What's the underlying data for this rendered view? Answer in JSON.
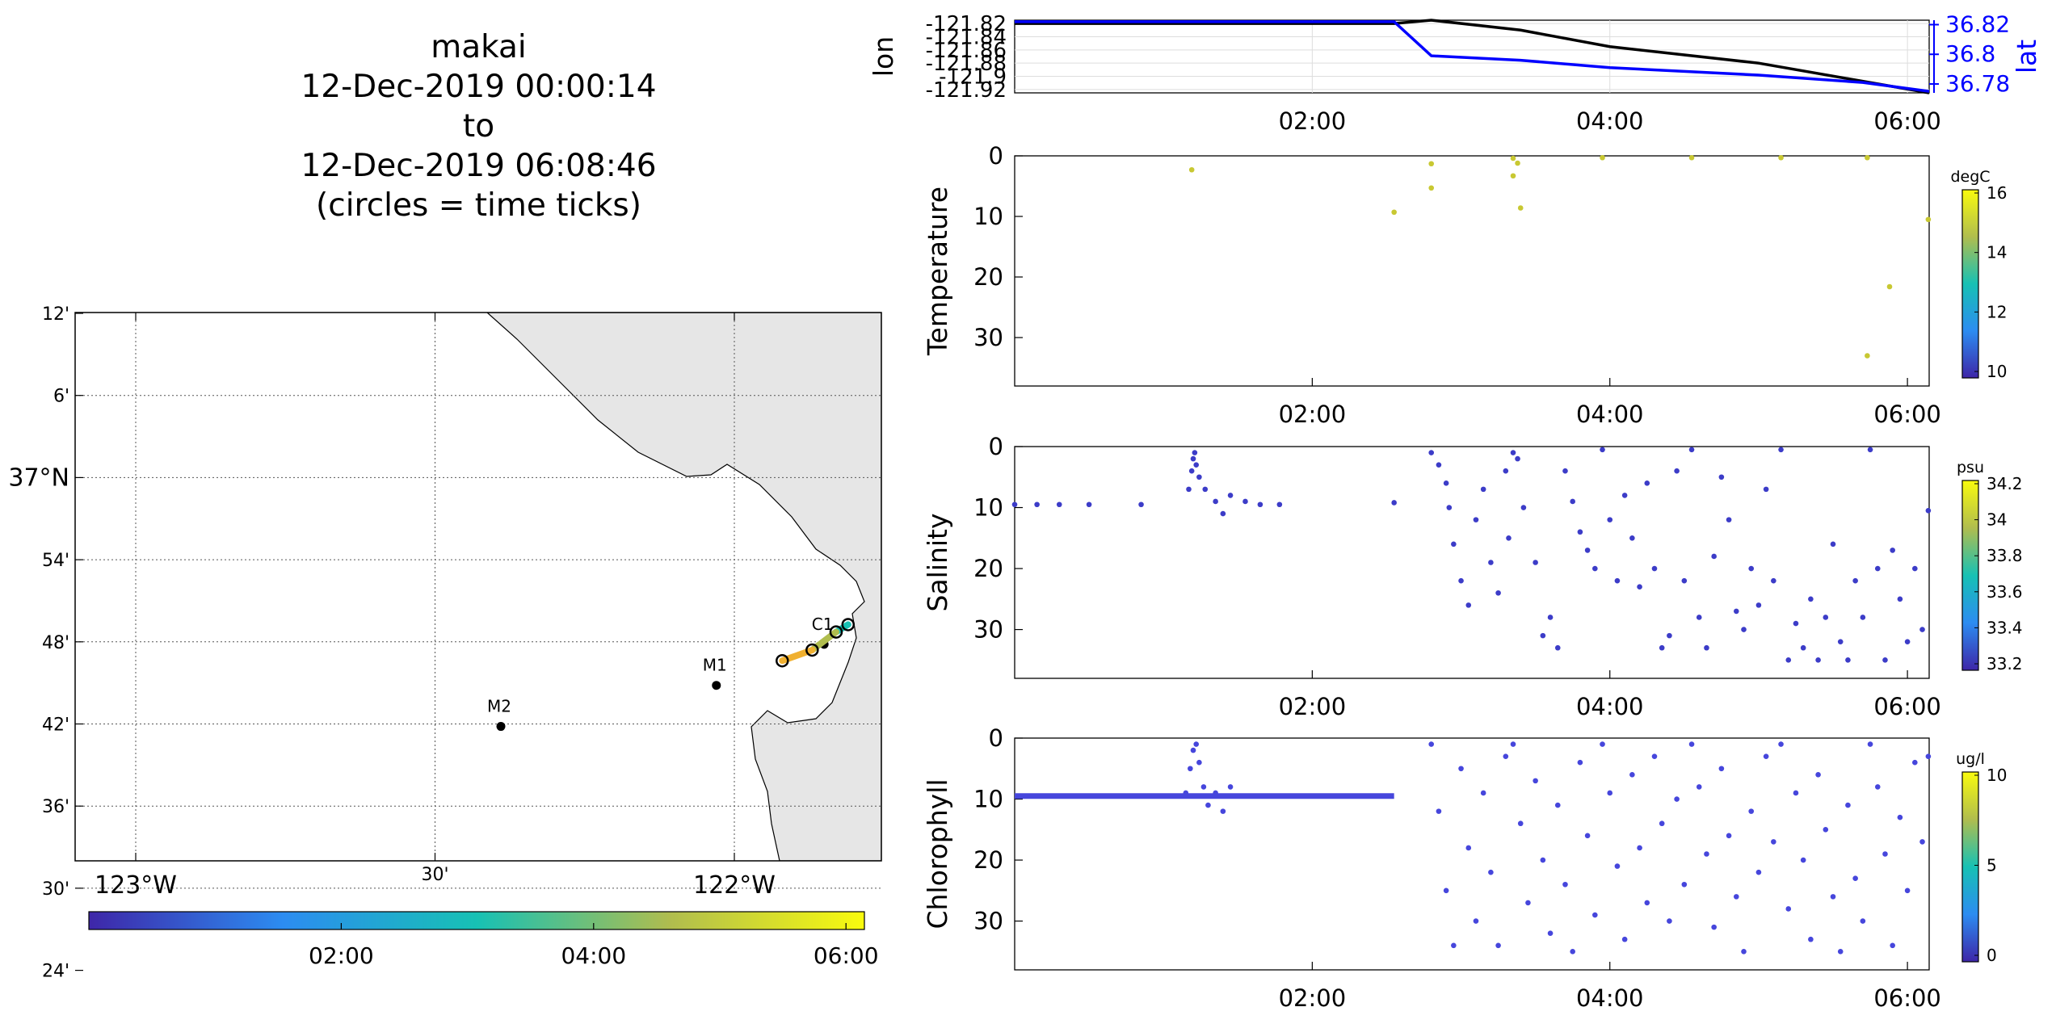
{
  "header": {
    "vehicle": "makai",
    "start": "12-Dec-2019 00:00:14",
    "to": "to",
    "end": "12-Dec-2019 06:08:46",
    "note": "(circles = time ticks)"
  },
  "map": {
    "lat_ticks": [
      "12'",
      "6'",
      "37°N",
      "54'",
      "48'",
      "42'",
      "36'",
      "30'",
      "24'"
    ],
    "lon_ticks": [
      "123°W",
      "30'",
      "122°W"
    ],
    "stations": [
      {
        "name": "M2",
        "lon": -122.39,
        "lat": 36.697
      },
      {
        "name": "M1",
        "lon": -122.03,
        "lat": 36.747
      },
      {
        "name": "C1",
        "lon": -121.85,
        "lat": 36.797
      }
    ],
    "track": {
      "lon": [
        -121.81,
        -121.83,
        -121.87,
        -121.92
      ],
      "lat": [
        36.821,
        36.812,
        36.79,
        36.777
      ]
    },
    "land_color": "#e6e6e6",
    "colorbar_ticks": [
      "02:00",
      "04:00",
      "06:00"
    ]
  },
  "chart_data": [
    {
      "type": "line",
      "x_units": "hours since 12-Dec-2019 00:00",
      "xticks": [
        "02:00",
        "04:00",
        "06:00"
      ],
      "xlim": [
        0,
        6.146
      ],
      "series": [
        {
          "name": "lon",
          "color": "#000000",
          "x": [
            0,
            2.0,
            2.55,
            2.8,
            3.4,
            4.0,
            5.0,
            6.146
          ],
          "y": [
            -121.82,
            -121.82,
            -121.82,
            -121.815,
            -121.83,
            -121.855,
            -121.88,
            -121.925
          ]
        },
        {
          "name": "lat",
          "color": "#0000ff",
          "x": [
            0,
            2.55,
            2.8,
            3.4,
            4.0,
            5.0,
            5.7,
            6.146
          ],
          "y": [
            36.822,
            36.822,
            36.799,
            36.796,
            36.791,
            36.786,
            36.781,
            36.775
          ]
        }
      ],
      "y_left": {
        "label": "lon",
        "ticks": [
          "-121.82",
          "-121.84",
          "-121.86",
          "-121.88",
          "-121.9",
          "-121.92"
        ],
        "lim": [
          -121.925,
          -121.815
        ]
      },
      "y_right": {
        "label": "lat",
        "ticks": [
          "36.82",
          "36.8",
          "36.78"
        ],
        "lim": [
          36.774,
          36.823
        ]
      }
    },
    {
      "type": "scatter",
      "ylabel": "Temperature",
      "ylim": [
        0,
        38
      ],
      "yticks": [
        "0",
        "10",
        "20",
        "30"
      ],
      "xticks": [
        "02:00",
        "04:00",
        "06:00"
      ],
      "colorbar": {
        "units": "degC",
        "ticks": [
          "16",
          "14",
          "12",
          "10"
        ]
      },
      "color": "#c8c832",
      "points": [
        [
          1.19,
          2.3
        ],
        [
          2.55,
          9.3
        ],
        [
          2.8,
          1.3
        ],
        [
          2.8,
          5.3
        ],
        [
          3.35,
          0.4
        ],
        [
          3.38,
          1.2
        ],
        [
          3.35,
          3.3
        ],
        [
          3.4,
          8.6
        ],
        [
          3.95,
          0.3
        ],
        [
          4.55,
          0.3
        ],
        [
          5.15,
          0.3
        ],
        [
          5.73,
          0.3
        ],
        [
          5.73,
          33
        ],
        [
          5.88,
          21.6
        ],
        [
          6.14,
          10.5
        ]
      ]
    },
    {
      "type": "scatter",
      "ylabel": "Salinity",
      "ylim": [
        0,
        38
      ],
      "yticks": [
        "0",
        "10",
        "20",
        "30"
      ],
      "xticks": [
        "02:00",
        "04:00",
        "06:00"
      ],
      "colorbar": {
        "units": "psu",
        "ticks": [
          "34.2",
          "34",
          "33.8",
          "33.6",
          "33.4",
          "33.2"
        ]
      },
      "color": "#3c3cc8",
      "points": [
        [
          0.0,
          9.5
        ],
        [
          0.15,
          9.5
        ],
        [
          0.3,
          9.5
        ],
        [
          0.5,
          9.5
        ],
        [
          0.85,
          9.5
        ],
        [
          1.17,
          7
        ],
        [
          1.19,
          4
        ],
        [
          1.2,
          2
        ],
        [
          1.21,
          1
        ],
        [
          1.22,
          3
        ],
        [
          1.24,
          5
        ],
        [
          1.28,
          7
        ],
        [
          1.35,
          9
        ],
        [
          1.4,
          11
        ],
        [
          1.45,
          8
        ],
        [
          1.55,
          9
        ],
        [
          1.65,
          9.5
        ],
        [
          1.78,
          9.5
        ],
        [
          2.55,
          9.2
        ],
        [
          2.8,
          1
        ],
        [
          2.85,
          3
        ],
        [
          2.9,
          6
        ],
        [
          2.92,
          10
        ],
        [
          2.95,
          16
        ],
        [
          3.0,
          22
        ],
        [
          3.05,
          26
        ],
        [
          3.1,
          12
        ],
        [
          3.15,
          7
        ],
        [
          3.2,
          19
        ],
        [
          3.25,
          24
        ],
        [
          3.3,
          4
        ],
        [
          3.32,
          15
        ],
        [
          3.35,
          1
        ],
        [
          3.38,
          2
        ],
        [
          3.42,
          10
        ],
        [
          3.5,
          19
        ],
        [
          3.55,
          31
        ],
        [
          3.6,
          28
        ],
        [
          3.65,
          33
        ],
        [
          3.7,
          4
        ],
        [
          3.75,
          9
        ],
        [
          3.8,
          14
        ],
        [
          3.85,
          17
        ],
        [
          3.9,
          20
        ],
        [
          3.95,
          0.5
        ],
        [
          4.0,
          12
        ],
        [
          4.05,
          22
        ],
        [
          4.1,
          8
        ],
        [
          4.15,
          15
        ],
        [
          4.2,
          23
        ],
        [
          4.25,
          6
        ],
        [
          4.3,
          20
        ],
        [
          4.35,
          33
        ],
        [
          4.4,
          31
        ],
        [
          4.45,
          4
        ],
        [
          4.5,
          22
        ],
        [
          4.55,
          0.5
        ],
        [
          4.6,
          28
        ],
        [
          4.65,
          33
        ],
        [
          4.7,
          18
        ],
        [
          4.75,
          5
        ],
        [
          4.8,
          12
        ],
        [
          4.85,
          27
        ],
        [
          4.9,
          30
        ],
        [
          4.95,
          20
        ],
        [
          5.0,
          26
        ],
        [
          5.05,
          7
        ],
        [
          5.1,
          22
        ],
        [
          5.15,
          0.5
        ],
        [
          5.2,
          35
        ],
        [
          5.25,
          29
        ],
        [
          5.3,
          33
        ],
        [
          5.35,
          25
        ],
        [
          5.4,
          35
        ],
        [
          5.45,
          28
        ],
        [
          5.5,
          16
        ],
        [
          5.55,
          32
        ],
        [
          5.6,
          35
        ],
        [
          5.65,
          22
        ],
        [
          5.7,
          28
        ],
        [
          5.75,
          0.5
        ],
        [
          5.8,
          20
        ],
        [
          5.85,
          35
        ],
        [
          5.9,
          17
        ],
        [
          5.95,
          25
        ],
        [
          6.0,
          32
        ],
        [
          6.05,
          20
        ],
        [
          6.1,
          30
        ],
        [
          6.14,
          10.5
        ]
      ]
    },
    {
      "type": "scatter",
      "ylabel": "Chlorophyll",
      "ylim": [
        0,
        38
      ],
      "yticks": [
        "0",
        "10",
        "20",
        "30"
      ],
      "xticks": [
        "02:00",
        "04:00",
        "06:00"
      ],
      "colorbar": {
        "units": "ug/l",
        "ticks": [
          "10",
          "5",
          "0"
        ]
      },
      "color": "#4646dc",
      "band": {
        "x": [
          0,
          2.55
        ],
        "depth": 9.5
      },
      "points": [
        [
          1.15,
          9
        ],
        [
          1.18,
          5
        ],
        [
          1.2,
          2
        ],
        [
          1.22,
          1
        ],
        [
          1.24,
          4
        ],
        [
          1.27,
          8
        ],
        [
          1.3,
          11
        ],
        [
          1.35,
          9
        ],
        [
          1.4,
          12
        ],
        [
          1.45,
          8
        ],
        [
          2.8,
          1
        ],
        [
          2.85,
          12
        ],
        [
          2.9,
          25
        ],
        [
          2.95,
          34
        ],
        [
          3.0,
          5
        ],
        [
          3.05,
          18
        ],
        [
          3.1,
          30
        ],
        [
          3.15,
          9
        ],
        [
          3.2,
          22
        ],
        [
          3.25,
          34
        ],
        [
          3.3,
          3
        ],
        [
          3.35,
          1
        ],
        [
          3.4,
          14
        ],
        [
          3.45,
          27
        ],
        [
          3.5,
          7
        ],
        [
          3.55,
          20
        ],
        [
          3.6,
          32
        ],
        [
          3.65,
          11
        ],
        [
          3.7,
          24
        ],
        [
          3.75,
          35
        ],
        [
          3.8,
          4
        ],
        [
          3.85,
          16
        ],
        [
          3.9,
          29
        ],
        [
          3.95,
          1
        ],
        [
          4.0,
          9
        ],
        [
          4.05,
          21
        ],
        [
          4.1,
          33
        ],
        [
          4.15,
          6
        ],
        [
          4.2,
          18
        ],
        [
          4.25,
          27
        ],
        [
          4.3,
          3
        ],
        [
          4.35,
          14
        ],
        [
          4.4,
          30
        ],
        [
          4.45,
          10
        ],
        [
          4.5,
          24
        ],
        [
          4.55,
          1
        ],
        [
          4.6,
          8
        ],
        [
          4.65,
          19
        ],
        [
          4.7,
          31
        ],
        [
          4.75,
          5
        ],
        [
          4.8,
          16
        ],
        [
          4.85,
          26
        ],
        [
          4.9,
          35
        ],
        [
          4.95,
          12
        ],
        [
          5.0,
          22
        ],
        [
          5.05,
          3
        ],
        [
          5.1,
          17
        ],
        [
          5.15,
          1
        ],
        [
          5.2,
          28
        ],
        [
          5.25,
          9
        ],
        [
          5.3,
          20
        ],
        [
          5.35,
          33
        ],
        [
          5.4,
          6
        ],
        [
          5.45,
          15
        ],
        [
          5.5,
          26
        ],
        [
          5.55,
          35
        ],
        [
          5.6,
          11
        ],
        [
          5.65,
          23
        ],
        [
          5.7,
          30
        ],
        [
          5.75,
          1
        ],
        [
          5.8,
          8
        ],
        [
          5.85,
          19
        ],
        [
          5.9,
          34
        ],
        [
          5.95,
          13
        ],
        [
          6.0,
          25
        ],
        [
          6.05,
          4
        ],
        [
          6.1,
          17
        ],
        [
          6.14,
          3
        ]
      ]
    }
  ]
}
